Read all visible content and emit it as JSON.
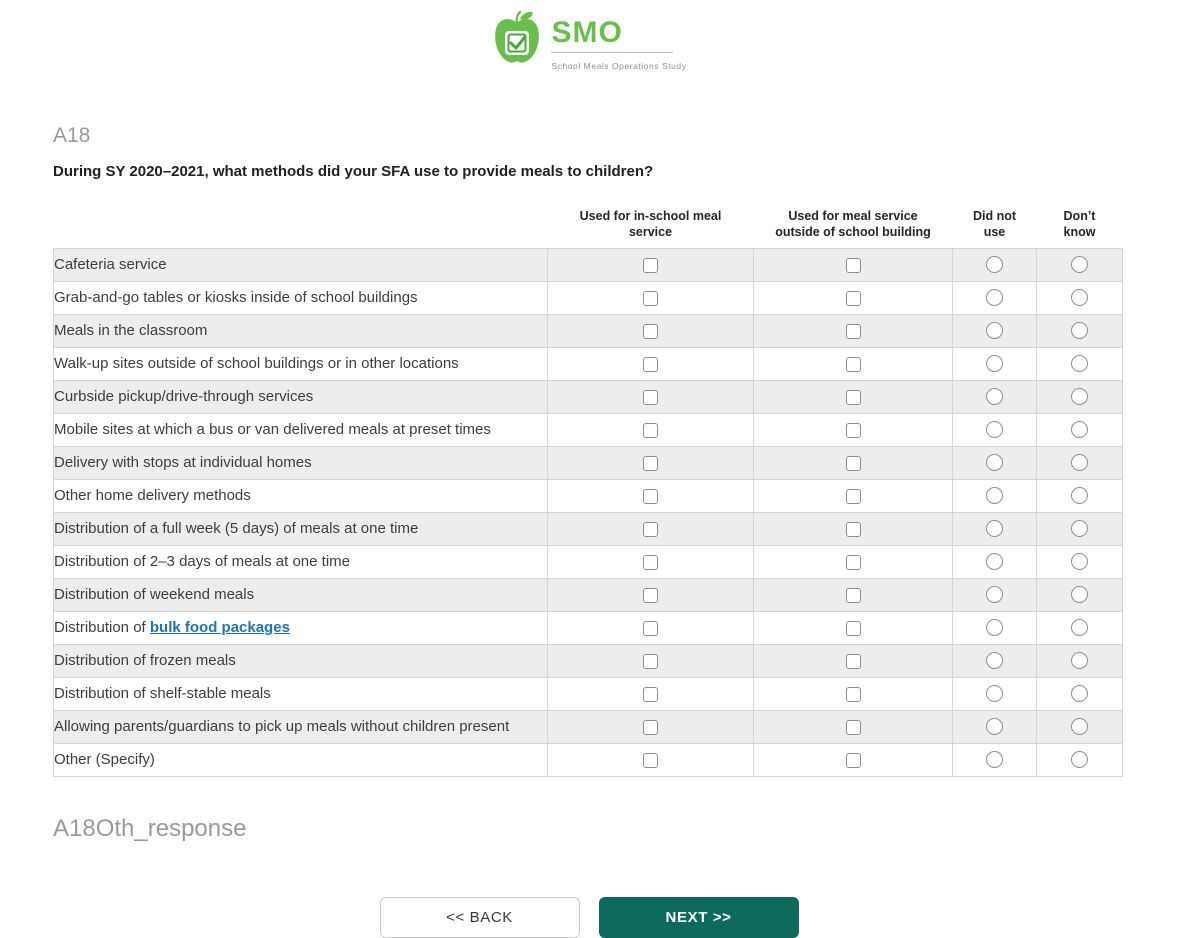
{
  "logo": {
    "acronym": "SMO",
    "subtitle": "School Meals Operations Study",
    "brand_green": "#6cbe4c"
  },
  "question": {
    "id": "A18",
    "text": "During SY 2020–2021, what methods did your SFA use to provide meals to children?"
  },
  "table": {
    "columns": [
      {
        "label": "Used for in-school meal service",
        "type": "checkbox"
      },
      {
        "label": "Used for meal service outside of school building",
        "type": "checkbox"
      },
      {
        "label": "Did not use",
        "type": "radio"
      },
      {
        "label": "Don’t know",
        "type": "radio"
      }
    ],
    "all_unselected": true,
    "rows": [
      {
        "label": "Cafeteria service"
      },
      {
        "label": "Grab-and-go tables or kiosks inside of school buildings"
      },
      {
        "label": "Meals in the classroom"
      },
      {
        "label": "Walk-up sites outside of school buildings or in other locations"
      },
      {
        "label": "Curbside pickup/drive-through services"
      },
      {
        "label": "Mobile sites at which a bus or van delivered meals at preset times"
      },
      {
        "label": "Delivery with stops at individual homes"
      },
      {
        "label": "Other home delivery methods"
      },
      {
        "label": "Distribution of a full week (5 days) of meals at one time"
      },
      {
        "label": "Distribution of 2–3 days of meals at one time"
      },
      {
        "label": "Distribution of weekend meals"
      },
      {
        "label": "Distribution of ",
        "link": "bulk food packages"
      },
      {
        "label": "Distribution of frozen meals"
      },
      {
        "label": "Distribution of shelf-stable meals"
      },
      {
        "label": "Allowing parents/guardians to pick up meals without children present"
      },
      {
        "label": "Other (Specify)"
      }
    ]
  },
  "other_response": {
    "id": "A18Oth_response"
  },
  "nav": {
    "back_label": "<< BACK",
    "next_label": "NEXT >>",
    "next_color": "#0c6a5d"
  },
  "link_color": "#2272b9"
}
